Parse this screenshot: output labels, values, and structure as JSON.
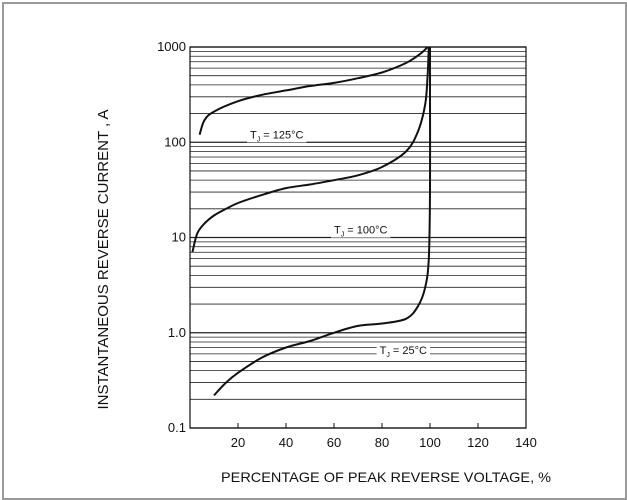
{
  "chart_data": {
    "type": "line",
    "xlabel": "PERCENTAGE OF PEAK REVERSE VOLTAGE, %",
    "ylabel": "INSTANTANEOUS REVERSE CURRENT ,  A",
    "xlim": [
      0,
      140
    ],
    "ylim": [
      0.1,
      1000
    ],
    "y_scale": "log",
    "x_ticks": [
      "20",
      "40",
      "60",
      "80",
      "100",
      "120",
      "140"
    ],
    "x_tick_values": [
      20,
      40,
      60,
      80,
      100,
      120,
      140
    ],
    "y_ticks": [
      "0.1",
      "1.0",
      "10",
      "100",
      "1000"
    ],
    "y_tick_values": [
      0.1,
      1,
      10,
      100,
      1000
    ],
    "grid": "horizontal",
    "annotations": [
      {
        "base": "T",
        "sub": "J",
        "text": " = 125°C",
        "x": 25,
        "y": 110
      },
      {
        "base": "T",
        "sub": "J",
        "text": " = 100°C",
        "x": 60,
        "y": 11
      },
      {
        "base": "T",
        "sub": "J",
        "text": " = 25°C",
        "x": 79,
        "y": 0.6
      }
    ],
    "series": [
      {
        "x": [
          4,
          6,
          10,
          20,
          30,
          40,
          50,
          60,
          70,
          80,
          90,
          96,
          99
        ],
        "y": [
          120,
          170,
          210,
          270,
          315,
          350,
          390,
          420,
          470,
          540,
          680,
          850,
          1000
        ]
      },
      {
        "x": [
          1,
          3,
          6,
          10,
          15,
          20,
          30,
          40,
          50,
          60,
          70,
          80,
          90,
          95,
          98,
          99,
          99.5
        ],
        "y": [
          7,
          11,
          14,
          17,
          20,
          23,
          28,
          33,
          36,
          40,
          45,
          55,
          80,
          130,
          250,
          500,
          1000
        ]
      },
      {
        "x": [
          10,
          15,
          20,
          30,
          40,
          50,
          60,
          70,
          80,
          90,
          95,
          98,
          99.5,
          100,
          100,
          100
        ],
        "y": [
          0.22,
          0.3,
          0.38,
          0.55,
          0.7,
          0.82,
          1.0,
          1.18,
          1.25,
          1.4,
          1.9,
          3.0,
          6.0,
          30,
          300,
          1000
        ]
      }
    ]
  }
}
